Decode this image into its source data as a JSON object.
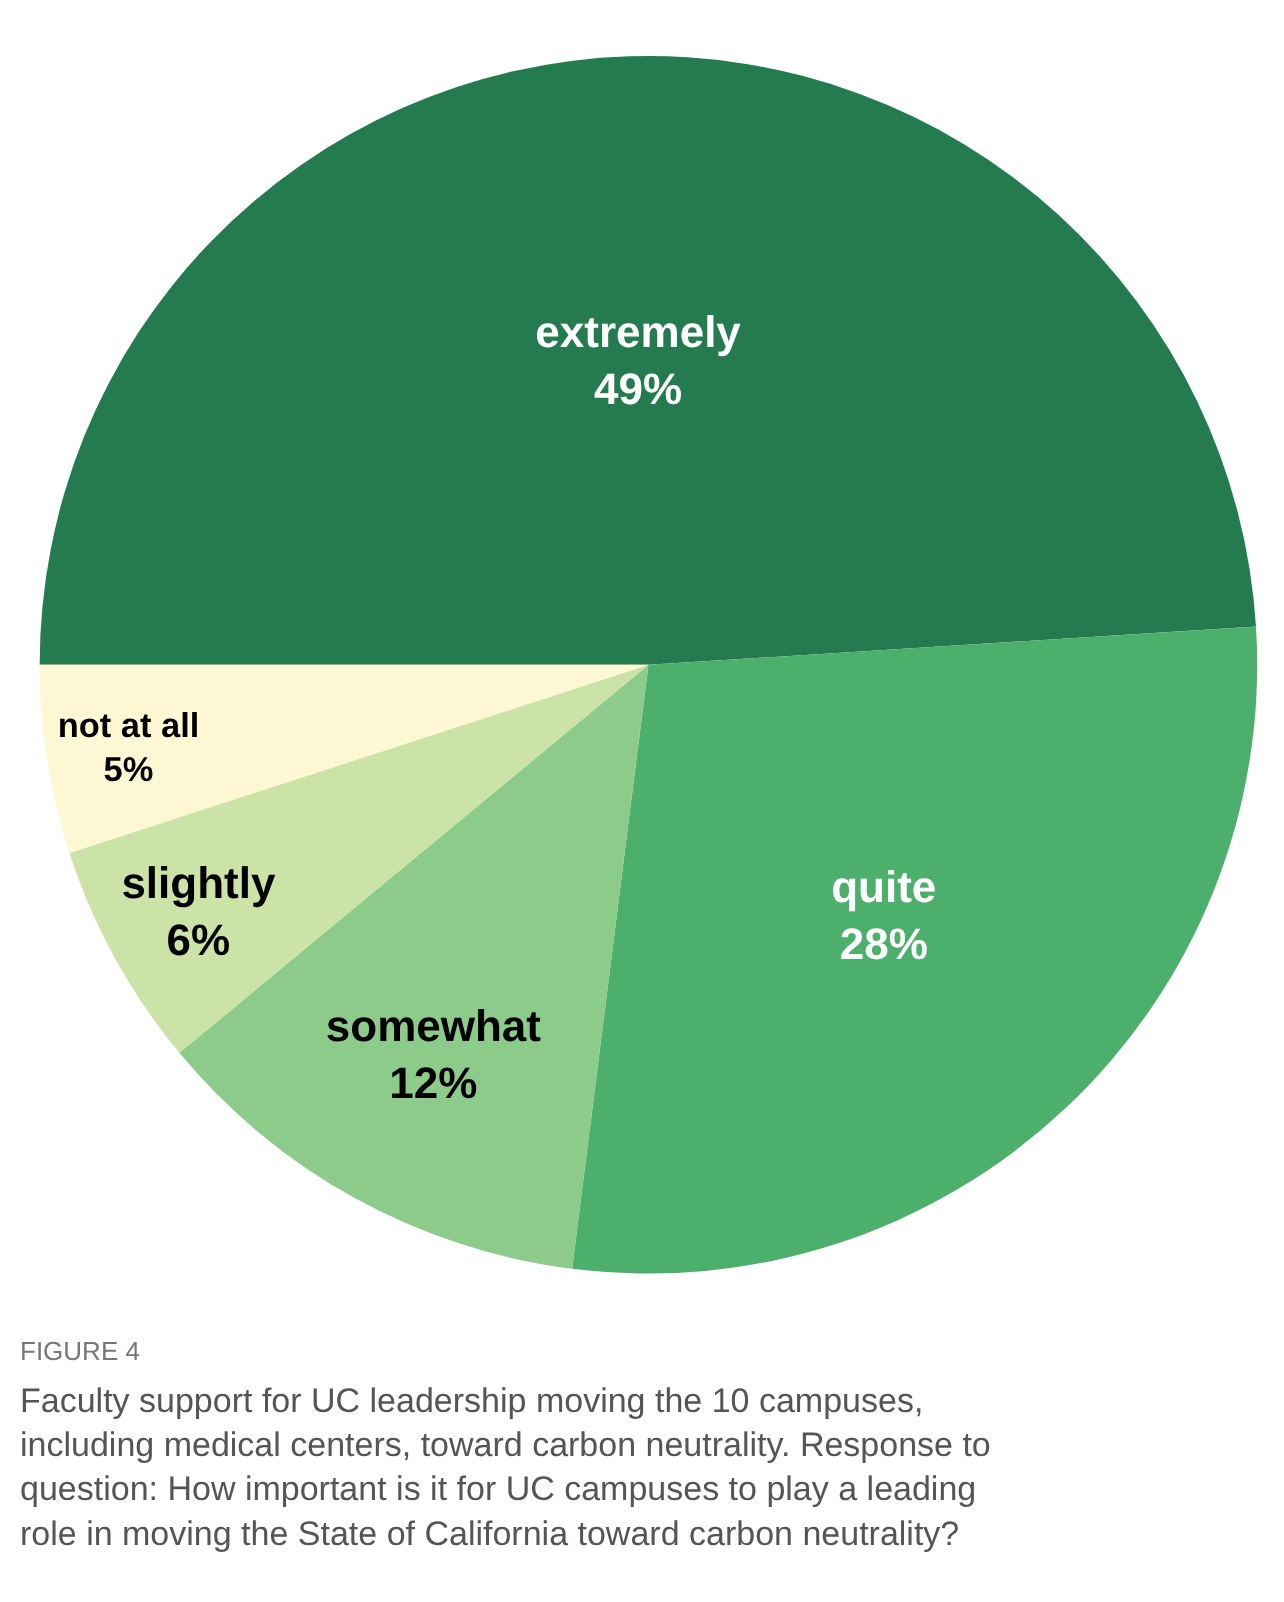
{
  "chart_data": {
    "type": "pie",
    "categories": [
      "extremely",
      "quite",
      "somewhat",
      "slightly",
      "not at all"
    ],
    "values": [
      49,
      28,
      12,
      6,
      5
    ],
    "colors": [
      "#237b4f",
      "#4caf6c",
      "#8dcb8b",
      "#cce3a8",
      "#fdf7d3"
    ],
    "value_labels": [
      "49%",
      "28%",
      "12%",
      "6%",
      "5%"
    ],
    "legend": false,
    "annotations": [
      "FIGURE 4",
      "Faculty support for UC leadership moving the 10 campuses, including medical centers, toward carbon neutrality. Response to question: How important is it for UC campuses to play a leading role in moving the State of California toward carbon neutrality?"
    ]
  }
}
